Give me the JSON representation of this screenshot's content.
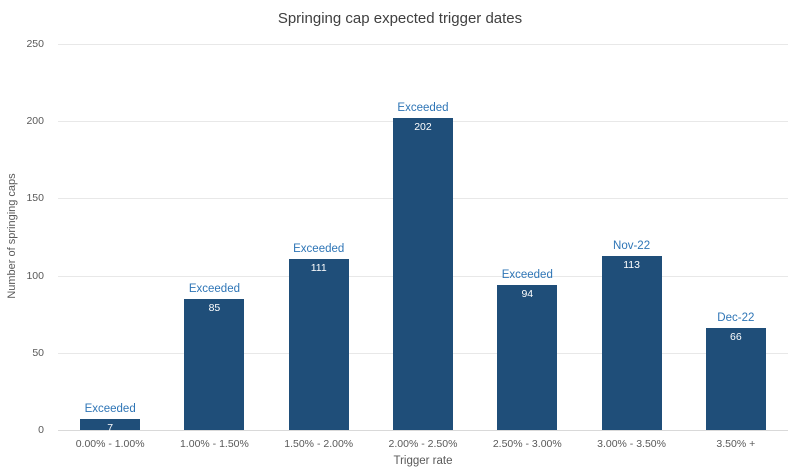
{
  "colors": {
    "bar": "#1F4E79",
    "annotation": "#2E75B6",
    "grid": "#E8E8E8",
    "baseline": "#D9D9D9",
    "axis_text": "#595959",
    "title_text": "#404040",
    "background": "#FFFFFF"
  },
  "chart_data": {
    "type": "bar",
    "title": "Springing cap expected trigger dates",
    "categories": [
      "0.00% - 1.00%",
      "1.00% - 1.50%",
      "1.50% - 2.00%",
      "2.00% - 2.50%",
      "2.50% - 3.00%",
      "3.00% - 3.50%",
      "3.50% +"
    ],
    "values": [
      7,
      85,
      111,
      202,
      94,
      113,
      66
    ],
    "bar_annotations": [
      "Exceeded",
      "Exceeded",
      "Exceeded",
      "Exceeded",
      "Exceeded",
      "Nov-22",
      "Dec-22"
    ],
    "value_labels": [
      "7",
      "85",
      "111",
      "202",
      "94",
      "113",
      "66"
    ],
    "xlabel": "Trigger rate",
    "ylabel": "Number of springing caps",
    "ylim": [
      0,
      250
    ],
    "yticks": [
      0,
      50,
      100,
      150,
      200,
      250
    ],
    "grid": "horizontal",
    "legend": "none"
  }
}
